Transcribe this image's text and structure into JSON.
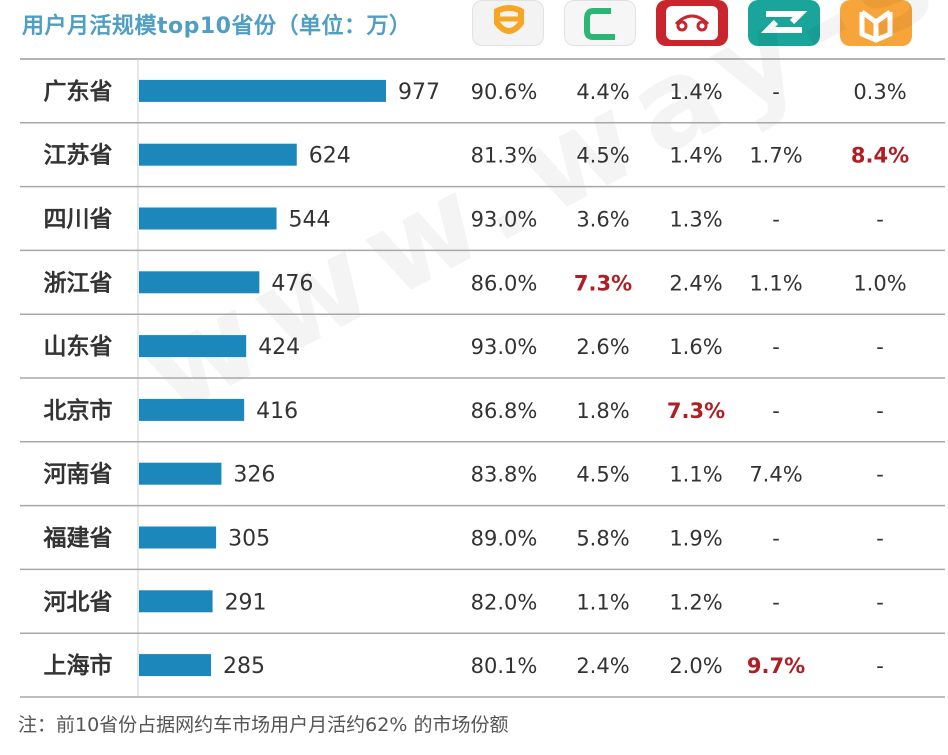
{
  "title": "用户月活规模top10省份（单位：万）",
  "logos": [
    {
      "name": "didi-logo-icon",
      "bg": "#f3f3f3",
      "fg": "#f6a623"
    },
    {
      "name": "cao-cao-logo-icon",
      "bg": "#f6f6f6",
      "fg": "#2bb673"
    },
    {
      "name": "shouqi-logo-icon",
      "bg": "#c9252c",
      "fg": "#ffffff"
    },
    {
      "name": "t3-logo-icon",
      "bg": "#1aa59a",
      "fg": "#ffffff"
    },
    {
      "name": "meituan-logo-icon",
      "bg": "#f7a43a",
      "fg": "#ffffff"
    }
  ],
  "chart_data": {
    "type": "bar",
    "categories": [
      "广东省",
      "江苏省",
      "四川省",
      "浙江省",
      "山东省",
      "北京市",
      "河南省",
      "福建省",
      "河北省",
      "上海市"
    ],
    "values": [
      977,
      624,
      544,
      476,
      424,
      416,
      326,
      305,
      291,
      285
    ],
    "value_labels": [
      "977",
      "624",
      "544",
      "476",
      "424",
      "416",
      "326",
      "305",
      "291",
      "285"
    ],
    "share_table": [
      [
        "90.6%",
        "4.4%",
        "1.4%",
        "-",
        "0.3%"
      ],
      [
        "81.3%",
        "4.5%",
        "1.4%",
        "1.7%",
        "8.4%"
      ],
      [
        "93.0%",
        "3.6%",
        "1.3%",
        "-",
        "-"
      ],
      [
        "86.0%",
        "7.3%",
        "2.4%",
        "1.1%",
        "1.0%"
      ],
      [
        "93.0%",
        "2.6%",
        "1.6%",
        "-",
        "-"
      ],
      [
        "86.8%",
        "1.8%",
        "7.3%",
        "-",
        "-"
      ],
      [
        "83.8%",
        "4.5%",
        "1.1%",
        "7.4%",
        "-"
      ],
      [
        "89.0%",
        "5.8%",
        "1.9%",
        "-",
        "-"
      ],
      [
        "82.0%",
        "1.1%",
        "1.2%",
        "-",
        "-"
      ],
      [
        "80.1%",
        "2.4%",
        "2.0%",
        "9.7%",
        "-"
      ]
    ],
    "highlighted_cells": [
      [
        1,
        4
      ],
      [
        3,
        1
      ],
      [
        5,
        2
      ],
      [
        9,
        3
      ]
    ],
    "bar_color": "#1b87bb",
    "highlight_color": "#b01e23",
    "text_color": "#333333"
  },
  "watermark": "www.way-s.cn",
  "note": "注：前10省份占据网约车市场用户月活约62% 的市场份额"
}
